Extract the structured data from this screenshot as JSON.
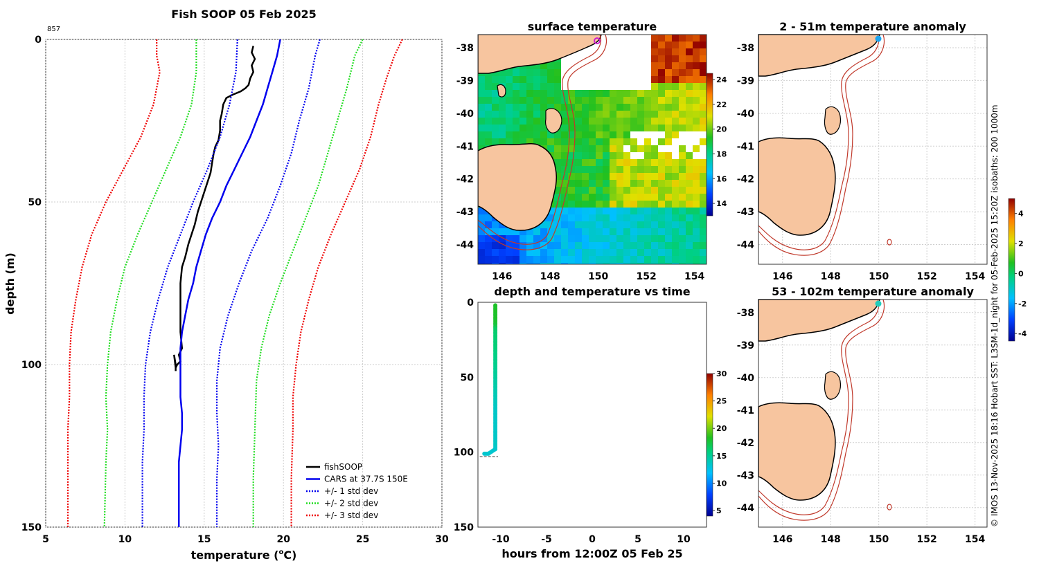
{
  "chart_data": [
    {
      "id": "profile",
      "type": "line",
      "title": "Fish SOOP 05 Feb 2025",
      "corner_label": "857",
      "xlabel_main": "temperature (",
      "xlabel_sup": "o",
      "xlabel_end": "C)",
      "ylabel": "depth (m)",
      "xlim": [
        5,
        30
      ],
      "ylim": [
        150,
        0
      ],
      "xticks": [
        "5",
        "10",
        "15",
        "20",
        "25",
        "30"
      ],
      "yticks": [
        "0",
        "50",
        "100",
        "150"
      ],
      "series": [
        {
          "name": "fishSOOP",
          "color": "#000000",
          "style": "solid",
          "points": [
            [
              18.1,
              2
            ],
            [
              18.0,
              4
            ],
            [
              18.2,
              6
            ],
            [
              18.0,
              8
            ],
            [
              18.1,
              10
            ],
            [
              17.9,
              12
            ],
            [
              17.8,
              14
            ],
            [
              17.6,
              15
            ],
            [
              17.3,
              16
            ],
            [
              16.8,
              17
            ],
            [
              16.4,
              18
            ],
            [
              16.2,
              20
            ],
            [
              16.1,
              23
            ],
            [
              16.0,
              25
            ],
            [
              16.0,
              28
            ],
            [
              15.9,
              31
            ],
            [
              15.7,
              33
            ],
            [
              15.6,
              35
            ],
            [
              15.5,
              38
            ],
            [
              15.4,
              41
            ],
            [
              15.2,
              44
            ],
            [
              15.0,
              47
            ],
            [
              14.8,
              50
            ],
            [
              14.6,
              53
            ],
            [
              14.4,
              57
            ],
            [
              14.2,
              60
            ],
            [
              14.0,
              63
            ],
            [
              13.8,
              67
            ],
            [
              13.6,
              70
            ],
            [
              13.5,
              75
            ],
            [
              13.5,
              80
            ],
            [
              13.5,
              85
            ],
            [
              13.5,
              90
            ],
            [
              13.6,
              95
            ],
            [
              13.4,
              97
            ],
            [
              13.5,
              99
            ],
            [
              13.3,
              100
            ],
            [
              13.2,
              101
            ],
            [
              13.1,
              97
            ],
            [
              13.2,
              100
            ],
            [
              13.2,
              102
            ]
          ]
        },
        {
          "name": "CARS at 37.7S 150E",
          "color": "#0000ee",
          "style": "solid",
          "points": [
            [
              19.8,
              0
            ],
            [
              19.6,
              5
            ],
            [
              19.3,
              10
            ],
            [
              19.0,
              15
            ],
            [
              18.7,
              20
            ],
            [
              18.3,
              25
            ],
            [
              17.9,
              30
            ],
            [
              17.4,
              35
            ],
            [
              16.9,
              40
            ],
            [
              16.4,
              45
            ],
            [
              16.0,
              50
            ],
            [
              15.5,
              55
            ],
            [
              15.1,
              60
            ],
            [
              14.8,
              65
            ],
            [
              14.5,
              70
            ],
            [
              14.3,
              75
            ],
            [
              14.0,
              80
            ],
            [
              13.8,
              85
            ],
            [
              13.6,
              90
            ],
            [
              13.5,
              95
            ],
            [
              13.5,
              100
            ],
            [
              13.5,
              105
            ],
            [
              13.5,
              110
            ],
            [
              13.6,
              115
            ],
            [
              13.6,
              120
            ],
            [
              13.5,
              125
            ],
            [
              13.4,
              130
            ],
            [
              13.4,
              140
            ],
            [
              13.4,
              150
            ]
          ]
        },
        {
          "name": "+/- 1 std dev",
          "color": "#0000ee",
          "style": "dotted",
          "points": [
            [
              17.1,
              0
            ],
            [
              17.0,
              10
            ],
            [
              16.6,
              20
            ],
            [
              16.0,
              30
            ],
            [
              15.2,
              40
            ],
            [
              14.3,
              50
            ],
            [
              13.5,
              60
            ],
            [
              12.7,
              70
            ],
            [
              12.1,
              80
            ],
            [
              11.6,
              90
            ],
            [
              11.3,
              100
            ],
            [
              11.2,
              110
            ],
            [
              11.2,
              120
            ],
            [
              11.1,
              130
            ],
            [
              11.1,
              150
            ]
          ]
        },
        {
          "name": "+/- 1 std dev (upper)",
          "color": "#0000ee",
          "style": "dotted",
          "points": [
            [
              22.3,
              0
            ],
            [
              22.0,
              5
            ],
            [
              21.6,
              15
            ],
            [
              21.0,
              25
            ],
            [
              20.5,
              35
            ],
            [
              19.8,
              45
            ],
            [
              19.0,
              55
            ],
            [
              18.0,
              65
            ],
            [
              17.2,
              75
            ],
            [
              16.5,
              85
            ],
            [
              16.0,
              95
            ],
            [
              15.8,
              105
            ],
            [
              15.8,
              115
            ],
            [
              15.9,
              125
            ],
            [
              15.8,
              135
            ],
            [
              15.8,
              150
            ]
          ]
        },
        {
          "name": "+/- 2 std dev",
          "color": "#22dd22",
          "style": "dotted",
          "points": [
            [
              14.5,
              0
            ],
            [
              14.5,
              10
            ],
            [
              14.2,
              20
            ],
            [
              13.5,
              30
            ],
            [
              12.6,
              40
            ],
            [
              11.7,
              50
            ],
            [
              10.8,
              60
            ],
            [
              10.0,
              70
            ],
            [
              9.5,
              80
            ],
            [
              9.1,
              90
            ],
            [
              8.9,
              100
            ],
            [
              8.8,
              110
            ],
            [
              8.9,
              120
            ],
            [
              8.8,
              130
            ],
            [
              8.7,
              150
            ]
          ]
        },
        {
          "name": "+/- 2 std dev (upper)",
          "color": "#22dd22",
          "style": "dotted",
          "points": [
            [
              25.0,
              0
            ],
            [
              24.5,
              5
            ],
            [
              24.0,
              15
            ],
            [
              23.4,
              25
            ],
            [
              22.8,
              35
            ],
            [
              22.2,
              45
            ],
            [
              21.4,
              55
            ],
            [
              20.6,
              65
            ],
            [
              19.8,
              75
            ],
            [
              19.1,
              85
            ],
            [
              18.6,
              95
            ],
            [
              18.3,
              105
            ],
            [
              18.2,
              120
            ],
            [
              18.1,
              135
            ],
            [
              18.1,
              150
            ]
          ]
        },
        {
          "name": "+/- 3 std dev",
          "color": "#ee0000",
          "style": "dotted",
          "points": [
            [
              12.0,
              0
            ],
            [
              12.0,
              5
            ],
            [
              12.2,
              10
            ],
            [
              11.8,
              20
            ],
            [
              11.0,
              30
            ],
            [
              9.9,
              40
            ],
            [
              8.8,
              50
            ],
            [
              7.9,
              60
            ],
            [
              7.3,
              70
            ],
            [
              6.9,
              80
            ],
            [
              6.6,
              90
            ],
            [
              6.5,
              100
            ],
            [
              6.5,
              110
            ],
            [
              6.4,
              120
            ],
            [
              6.4,
              130
            ],
            [
              6.4,
              150
            ]
          ]
        },
        {
          "name": "+/- 3 std dev (upper)",
          "color": "#ee0000",
          "style": "dotted",
          "points": [
            [
              27.5,
              0
            ],
            [
              27.0,
              5
            ],
            [
              26.5,
              12
            ],
            [
              26.0,
              20
            ],
            [
              25.5,
              30
            ],
            [
              24.8,
              40
            ],
            [
              23.9,
              50
            ],
            [
              23.0,
              60
            ],
            [
              22.2,
              70
            ],
            [
              21.6,
              80
            ],
            [
              21.1,
              90
            ],
            [
              20.8,
              100
            ],
            [
              20.6,
              110
            ],
            [
              20.6,
              120
            ],
            [
              20.5,
              135
            ],
            [
              20.5,
              150
            ]
          ]
        }
      ],
      "legend": [
        {
          "label": "fishSOOP",
          "color": "#000000",
          "style": "solid"
        },
        {
          "label": "CARS at 37.7S 150E",
          "color": "#0000ee",
          "style": "solid"
        },
        {
          "label": "+/- 1 std dev",
          "color": "#0000ee",
          "style": "dotted"
        },
        {
          "label": "+/- 2 std dev",
          "color": "#22dd22",
          "style": "dotted"
        },
        {
          "label": "+/- 3 std dev",
          "color": "#ee0000",
          "style": "dotted"
        }
      ],
      "legend_position": "bottom-right"
    },
    {
      "id": "sst_map",
      "type": "heatmap",
      "title": "surface temperature",
      "lon_range": [
        145,
        154.5
      ],
      "lat_range": [
        -44.6,
        -37.6
      ],
      "xticks": [
        "146",
        "148",
        "150",
        "152",
        "154"
      ],
      "yticks": [
        "-38",
        "-39",
        "-40",
        "-41",
        "-42",
        "-43",
        "-44"
      ],
      "colorbar_ticks": [
        "14",
        "16",
        "18",
        "20",
        "22",
        "24"
      ],
      "colorbar_range": [
        13,
        24.5
      ],
      "marker": {
        "lon": 150.0,
        "lat": -37.7
      }
    },
    {
      "id": "depth_time",
      "type": "scatter",
      "title": "depth and temperature vs time",
      "xlabel": "hours from 12:00Z 05 Feb 25",
      "xlim": [
        -12.5,
        12.5
      ],
      "ylim": [
        150,
        0
      ],
      "xticks": [
        "-10",
        "-5",
        "0",
        "5",
        "10"
      ],
      "yticks": [
        "0",
        "50",
        "100",
        "150"
      ],
      "colorbar_ticks": [
        "5",
        "10",
        "15",
        "20",
        "25",
        "30"
      ],
      "colorbar_range": [
        4,
        30
      ],
      "points_summary": {
        "hours": [
          -11.8,
          -10.6
        ],
        "depth_range": [
          2,
          103
        ],
        "temp_range": [
          13.1,
          18.1
        ]
      }
    },
    {
      "id": "anom_shallow",
      "type": "heatmap",
      "title": "2 - 51m temperature anomaly",
      "xticks": [
        "146",
        "148",
        "150",
        "152",
        "154"
      ],
      "yticks": [
        "-38",
        "-39",
        "-40",
        "-41",
        "-42",
        "-43",
        "-44"
      ],
      "marker": {
        "lon": 150.0,
        "lat": -37.7,
        "color": "#1aa3ee"
      }
    },
    {
      "id": "anom_deep",
      "type": "heatmap",
      "title": "53 - 102m temperature anomaly",
      "xticks": [
        "146",
        "148",
        "150",
        "152",
        "154"
      ],
      "yticks": [
        "-38",
        "-39",
        "-40",
        "-41",
        "-42",
        "-43",
        "-44"
      ],
      "marker": {
        "lon": 150.0,
        "lat": -37.7,
        "color": "#22ccbb"
      }
    },
    {
      "id": "anom_colorbar",
      "type": "heatmap",
      "colorbar_ticks": [
        "4",
        "2",
        "0",
        "-2",
        "-4"
      ],
      "colorbar_range": [
        -4.5,
        5
      ]
    }
  ],
  "credit": "© IMOS 13-Nov-2025 18:16 Hobart SST: L3SM-1d_night for 05-Feb-2025 15:20Z isobaths: 200  1000m",
  "colors": {
    "land": "#f7c59f",
    "isobath": "#c0392b",
    "grid": "#cccccc"
  }
}
